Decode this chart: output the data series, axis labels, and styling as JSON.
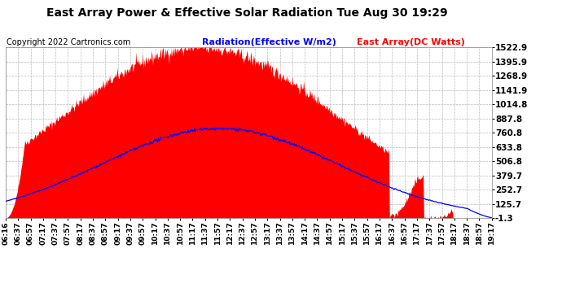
{
  "title": "East Array Power & Effective Solar Radiation Tue Aug 30 19:29",
  "copyright": "Copyright 2022 Cartronics.com",
  "legend_radiation": "Radiation(Effective W/m2)",
  "legend_east": "East Array(DC Watts)",
  "yticks": [
    -1.3,
    125.7,
    252.7,
    379.7,
    506.8,
    633.8,
    760.8,
    887.8,
    1014.8,
    1141.9,
    1268.9,
    1395.9,
    1522.9
  ],
  "ymin": -1.3,
  "ymax": 1522.9,
  "radiation_color": "#0000ff",
  "east_color": "#ff0000",
  "grid_color": "#aaaaaa",
  "bg_color": "#ffffff",
  "title_color": "#000000",
  "xtick_labels": [
    "06:16",
    "06:37",
    "06:57",
    "07:17",
    "07:37",
    "07:57",
    "08:17",
    "08:37",
    "08:57",
    "09:17",
    "09:37",
    "09:57",
    "10:17",
    "10:37",
    "10:57",
    "11:17",
    "11:37",
    "11:57",
    "12:17",
    "12:37",
    "12:57",
    "13:17",
    "13:37",
    "13:57",
    "14:17",
    "14:37",
    "14:57",
    "15:17",
    "15:37",
    "15:57",
    "16:17",
    "16:37",
    "16:57",
    "17:17",
    "17:37",
    "17:57",
    "18:17",
    "18:37",
    "18:57",
    "19:17"
  ]
}
